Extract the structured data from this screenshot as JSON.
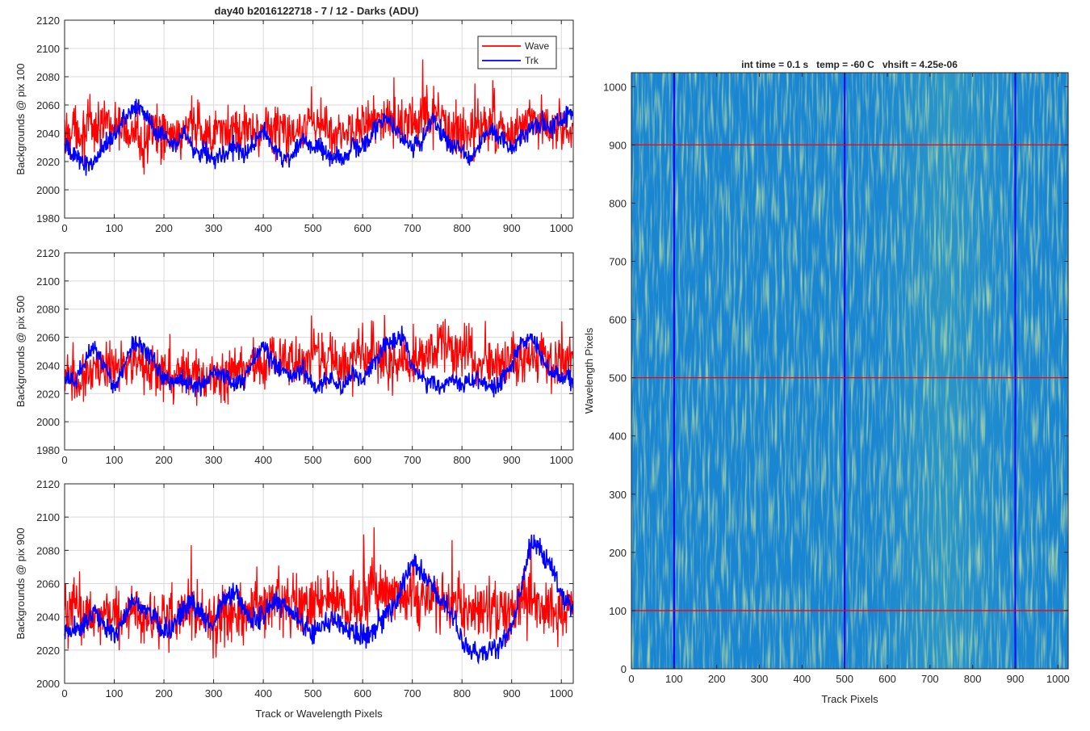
{
  "figure_title": "day40 b2016122718 - 7 / 12 - Darks (ADU)",
  "colors": {
    "wave": "#ff0000",
    "trk": "#0000ff",
    "grid": "#d9d9d9",
    "axis": "#262626"
  },
  "chart_data": [
    {
      "type": "line",
      "title": "day40 b2016122718 - 7 / 12 - Darks (ADU)",
      "xlabel": "",
      "ylabel": "Backgrounds @ pix 100",
      "xlim": [
        0,
        1024
      ],
      "ylim": [
        1980,
        2120
      ],
      "xticks": [
        0,
        100,
        200,
        300,
        400,
        500,
        600,
        700,
        800,
        900,
        1000
      ],
      "yticks": [
        1980,
        2000,
        2020,
        2040,
        2060,
        2080,
        2100,
        2120
      ],
      "grid": true,
      "legend": {
        "placement": "top-right",
        "entries": [
          "Wave",
          "Trk"
        ]
      },
      "series": [
        {
          "name": "Wave",
          "color": "#ff0000",
          "x": [
            0,
            20,
            40,
            60,
            80,
            100,
            120,
            140,
            160,
            180,
            200,
            220,
            240,
            260,
            280,
            300,
            320,
            340,
            360,
            380,
            400,
            420,
            440,
            460,
            480,
            500,
            520,
            540,
            560,
            580,
            600,
            620,
            640,
            660,
            680,
            700,
            720,
            740,
            760,
            780,
            800,
            820,
            840,
            860,
            880,
            900,
            920,
            940,
            960,
            980,
            1000,
            1020
          ],
          "values": [
            2038,
            2045,
            2040,
            2042,
            2050,
            2045,
            2040,
            2042,
            2035,
            2040,
            2038,
            2040,
            2040,
            2045,
            2042,
            2038,
            2040,
            2040,
            2043,
            2040,
            2045,
            2042,
            2040,
            2043,
            2047,
            2048,
            2045,
            2042,
            2040,
            2045,
            2048,
            2050,
            2048,
            2046,
            2044,
            2047,
            2048,
            2052,
            2048,
            2042,
            2042,
            2040,
            2045,
            2048,
            2043,
            2040,
            2045,
            2045,
            2048,
            2045,
            2042,
            2038
          ]
        },
        {
          "name": "Trk",
          "color": "#0000ff",
          "x": [
            0,
            20,
            40,
            60,
            80,
            100,
            120,
            140,
            160,
            180,
            200,
            220,
            240,
            260,
            280,
            300,
            320,
            340,
            360,
            380,
            400,
            420,
            440,
            460,
            480,
            500,
            520,
            540,
            560,
            580,
            600,
            620,
            640,
            660,
            680,
            700,
            720,
            740,
            760,
            780,
            800,
            820,
            840,
            860,
            880,
            900,
            920,
            940,
            960,
            980,
            1000,
            1020
          ],
          "values": [
            2030,
            2025,
            2018,
            2020,
            2032,
            2040,
            2050,
            2058,
            2055,
            2042,
            2040,
            2032,
            2042,
            2028,
            2028,
            2022,
            2025,
            2030,
            2025,
            2032,
            2042,
            2030,
            2022,
            2025,
            2038,
            2028,
            2028,
            2022,
            2022,
            2030,
            2030,
            2040,
            2052,
            2045,
            2038,
            2030,
            2035,
            2050,
            2040,
            2032,
            2028,
            2022,
            2035,
            2045,
            2035,
            2030,
            2040,
            2042,
            2048,
            2045,
            2050,
            2055
          ]
        }
      ]
    },
    {
      "type": "line",
      "title": "",
      "xlabel": "",
      "ylabel": "Backgrounds @ pix 500",
      "xlim": [
        0,
        1024
      ],
      "ylim": [
        1980,
        2120
      ],
      "xticks": [
        0,
        100,
        200,
        300,
        400,
        500,
        600,
        700,
        800,
        900,
        1000
      ],
      "yticks": [
        1980,
        2000,
        2020,
        2040,
        2060,
        2080,
        2100,
        2120
      ],
      "grid": true,
      "series": [
        {
          "name": "Wave",
          "color": "#ff0000",
          "x": [
            0,
            20,
            40,
            60,
            80,
            100,
            120,
            140,
            160,
            180,
            200,
            220,
            240,
            260,
            280,
            300,
            320,
            340,
            360,
            380,
            400,
            420,
            440,
            460,
            480,
            500,
            520,
            540,
            560,
            580,
            600,
            620,
            640,
            660,
            680,
            700,
            720,
            740,
            760,
            780,
            800,
            820,
            840,
            860,
            880,
            900,
            920,
            940,
            960,
            980,
            1000,
            1020
          ],
          "values": [
            2035,
            2028,
            2030,
            2035,
            2040,
            2035,
            2040,
            2042,
            2038,
            2034,
            2030,
            2030,
            2034,
            2030,
            2030,
            2032,
            2034,
            2035,
            2038,
            2045,
            2040,
            2042,
            2042,
            2045,
            2040,
            2050,
            2048,
            2044,
            2042,
            2044,
            2048,
            2050,
            2045,
            2040,
            2040,
            2045,
            2050,
            2052,
            2055,
            2050,
            2048,
            2045,
            2042,
            2040,
            2040,
            2042,
            2045,
            2048,
            2045,
            2043,
            2048,
            2045
          ]
        },
        {
          "name": "Trk",
          "color": "#0000ff",
          "x": [
            0,
            20,
            40,
            60,
            80,
            100,
            120,
            140,
            160,
            180,
            200,
            220,
            240,
            260,
            280,
            300,
            320,
            340,
            360,
            380,
            400,
            420,
            440,
            460,
            480,
            500,
            520,
            540,
            560,
            580,
            600,
            620,
            640,
            660,
            680,
            700,
            720,
            740,
            760,
            780,
            800,
            820,
            840,
            860,
            880,
            900,
            920,
            940,
            960,
            980,
            1000,
            1020
          ],
          "values": [
            2030,
            2028,
            2042,
            2055,
            2040,
            2022,
            2040,
            2058,
            2052,
            2042,
            2032,
            2028,
            2030,
            2025,
            2028,
            2035,
            2032,
            2028,
            2030,
            2045,
            2055,
            2040,
            2035,
            2032,
            2038,
            2024,
            2028,
            2030,
            2022,
            2034,
            2030,
            2042,
            2050,
            2058,
            2062,
            2040,
            2030,
            2028,
            2025,
            2030,
            2028,
            2028,
            2030,
            2025,
            2030,
            2040,
            2055,
            2062,
            2045,
            2035,
            2032,
            2030
          ]
        }
      ]
    },
    {
      "type": "line",
      "title": "",
      "xlabel": "Track or Wavelength Pixels",
      "ylabel": "Backgrounds @ pix 900",
      "xlim": [
        0,
        1024
      ],
      "ylim": [
        2000,
        2120
      ],
      "xticks": [
        0,
        100,
        200,
        300,
        400,
        500,
        600,
        700,
        800,
        900,
        1000
      ],
      "yticks": [
        2000,
        2020,
        2040,
        2060,
        2080,
        2100,
        2120
      ],
      "grid": true,
      "series": [
        {
          "name": "Wave",
          "color": "#ff0000",
          "x": [
            0,
            20,
            40,
            60,
            80,
            100,
            120,
            140,
            160,
            180,
            200,
            220,
            240,
            260,
            280,
            300,
            320,
            340,
            360,
            380,
            400,
            420,
            440,
            460,
            480,
            500,
            520,
            540,
            560,
            580,
            600,
            620,
            640,
            660,
            680,
            700,
            720,
            740,
            760,
            780,
            800,
            820,
            840,
            860,
            880,
            900,
            920,
            940,
            960,
            980,
            1000,
            1020
          ],
          "values": [
            2040,
            2050,
            2042,
            2040,
            2045,
            2040,
            2035,
            2042,
            2038,
            2040,
            2040,
            2040,
            2042,
            2045,
            2040,
            2035,
            2040,
            2045,
            2042,
            2045,
            2045,
            2050,
            2048,
            2045,
            2045,
            2048,
            2050,
            2050,
            2045,
            2052,
            2050,
            2055,
            2055,
            2050,
            2052,
            2055,
            2052,
            2052,
            2050,
            2048,
            2045,
            2045,
            2045,
            2042,
            2045,
            2045,
            2050,
            2052,
            2048,
            2045,
            2042,
            2045
          ]
        },
        {
          "name": "Trk",
          "color": "#0000ff",
          "x": [
            0,
            20,
            40,
            60,
            80,
            100,
            120,
            140,
            160,
            180,
            200,
            220,
            240,
            260,
            280,
            300,
            320,
            340,
            360,
            380,
            400,
            420,
            440,
            460,
            480,
            500,
            520,
            540,
            560,
            580,
            600,
            620,
            640,
            660,
            680,
            700,
            720,
            740,
            760,
            780,
            800,
            820,
            840,
            860,
            880,
            900,
            920,
            940,
            960,
            980,
            1000,
            1020
          ],
          "values": [
            2030,
            2032,
            2035,
            2045,
            2035,
            2028,
            2040,
            2050,
            2045,
            2040,
            2030,
            2035,
            2045,
            2048,
            2038,
            2035,
            2050,
            2058,
            2045,
            2038,
            2040,
            2048,
            2050,
            2040,
            2036,
            2030,
            2035,
            2040,
            2035,
            2030,
            2028,
            2032,
            2038,
            2045,
            2058,
            2075,
            2065,
            2058,
            2050,
            2040,
            2025,
            2020,
            2018,
            2020,
            2025,
            2035,
            2060,
            2085,
            2080,
            2070,
            2055,
            2045
          ]
        }
      ]
    },
    {
      "type": "heatmap",
      "title": "int time = 0.1 s   temp = -60 C   vhsift = 4.25e-06",
      "xlabel": "Track Pixels",
      "ylabel": "Wavelength Pixels",
      "xlim": [
        0,
        1024
      ],
      "ylim": [
        0,
        1024
      ],
      "xticks": [
        0,
        100,
        200,
        300,
        400,
        500,
        600,
        700,
        800,
        900,
        1000
      ],
      "yticks": [
        0,
        100,
        200,
        300,
        400,
        500,
        600,
        700,
        800,
        900,
        1000
      ],
      "colormap": "parula",
      "colors": {
        "low": "#1f5fc8",
        "mid": "#1a94d8",
        "high": "#8dc45a"
      },
      "vertical_markers": {
        "color": "#0000ff",
        "x": [
          100,
          500,
          900
        ]
      },
      "horizontal_markers": {
        "color": "#ff0000",
        "y": [
          100,
          500,
          900
        ]
      }
    }
  ]
}
